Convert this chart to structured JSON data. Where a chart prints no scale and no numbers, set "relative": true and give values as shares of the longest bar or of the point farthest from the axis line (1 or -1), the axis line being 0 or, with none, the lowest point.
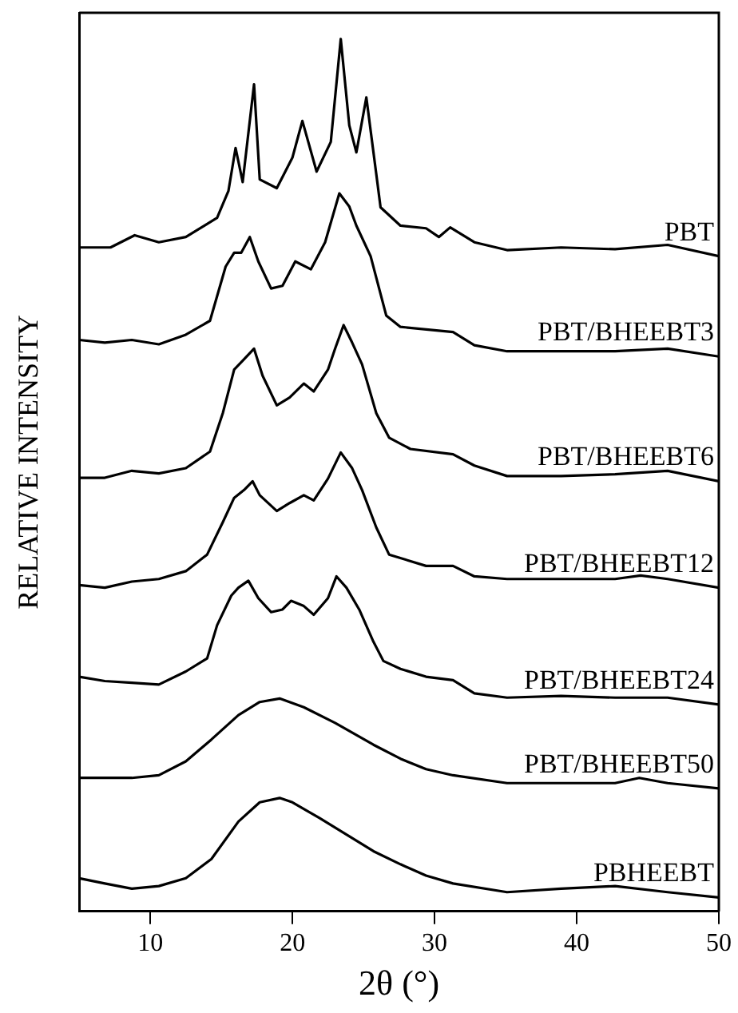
{
  "chart_data": {
    "type": "line",
    "relative": true,
    "xlabel": "2θ (°)",
    "ylabel": "RELATIVE INTENSITY",
    "xlim": [
      5,
      50
    ],
    "xticks": [
      10,
      20,
      30,
      40,
      50
    ],
    "tick_labels": "x",
    "grid": false,
    "legend": false,
    "marker": "none",
    "line_style": "solid",
    "series": [
      {
        "name": "PBT",
        "color": "#000000",
        "x": [
          5.0,
          7.2,
          8.9,
          10.6,
          12.5,
          14.7,
          15.5,
          16.0,
          16.5,
          17.3,
          17.7,
          18.9,
          20.0,
          20.7,
          21.7,
          22.7,
          23.4,
          24.0,
          24.5,
          25.2,
          25.9,
          26.2,
          27.6,
          29.4,
          30.3,
          31.1,
          32.8,
          35.1,
          38.9,
          42.7,
          46.4,
          50.0
        ],
        "values": [
          0.761,
          0.761,
          0.775,
          0.767,
          0.773,
          0.795,
          0.826,
          0.875,
          0.836,
          0.948,
          0.839,
          0.829,
          0.864,
          0.906,
          0.848,
          0.882,
          1.0,
          0.901,
          0.87,
          0.933,
          0.845,
          0.807,
          0.786,
          0.783,
          0.773,
          0.784,
          0.767,
          0.758,
          0.761,
          0.759,
          0.764,
          0.751
        ]
      },
      {
        "name": "PBT/BHEEBT3",
        "color": "#000000",
        "x": [
          5.0,
          6.8,
          8.7,
          10.6,
          12.5,
          14.2,
          15.3,
          15.9,
          16.4,
          17.0,
          17.6,
          18.5,
          19.3,
          20.2,
          21.3,
          22.3,
          23.3,
          24.0,
          24.5,
          25.5,
          26.6,
          27.6,
          31.3,
          32.8,
          35.1,
          38.9,
          42.7,
          46.4,
          50.0
        ],
        "values": [
          0.655,
          0.652,
          0.655,
          0.65,
          0.661,
          0.677,
          0.739,
          0.755,
          0.755,
          0.773,
          0.745,
          0.714,
          0.717,
          0.745,
          0.736,
          0.767,
          0.823,
          0.808,
          0.786,
          0.751,
          0.683,
          0.67,
          0.664,
          0.649,
          0.642,
          0.642,
          0.642,
          0.645,
          0.636
        ]
      },
      {
        "name": "PBT/BHEEBT6",
        "color": "#000000",
        "x": [
          5.0,
          6.8,
          8.7,
          10.6,
          12.5,
          14.2,
          15.1,
          15.9,
          16.6,
          17.3,
          17.9,
          18.9,
          19.8,
          20.8,
          21.5,
          22.5,
          23.0,
          23.6,
          24.2,
          24.9,
          25.9,
          26.8,
          28.3,
          31.3,
          32.8,
          35.1,
          38.9,
          42.7,
          46.4,
          50.0
        ],
        "values": [
          0.497,
          0.497,
          0.505,
          0.502,
          0.508,
          0.527,
          0.571,
          0.621,
          0.633,
          0.645,
          0.614,
          0.58,
          0.589,
          0.605,
          0.596,
          0.621,
          0.645,
          0.672,
          0.652,
          0.627,
          0.571,
          0.543,
          0.53,
          0.524,
          0.511,
          0.499,
          0.499,
          0.501,
          0.505,
          0.493
        ]
      },
      {
        "name": "PBT/BHEEBT12",
        "color": "#000000",
        "x": [
          5.0,
          6.8,
          8.7,
          10.6,
          12.5,
          14.0,
          15.1,
          15.9,
          16.6,
          17.2,
          17.7,
          18.9,
          19.8,
          20.8,
          21.5,
          22.5,
          23.4,
          24.2,
          24.9,
          25.9,
          26.8,
          29.4,
          31.3,
          32.8,
          35.1,
          38.9,
          42.7,
          44.5,
          46.4,
          50.0
        ],
        "values": [
          0.374,
          0.371,
          0.378,
          0.381,
          0.39,
          0.409,
          0.446,
          0.474,
          0.483,
          0.493,
          0.477,
          0.459,
          0.468,
          0.477,
          0.471,
          0.496,
          0.526,
          0.508,
          0.483,
          0.44,
          0.409,
          0.396,
          0.396,
          0.384,
          0.381,
          0.381,
          0.381,
          0.385,
          0.381,
          0.371
        ]
      },
      {
        "name": "PBT/BHEEBT24",
        "color": "#000000",
        "x": [
          5.0,
          6.8,
          8.7,
          10.6,
          12.5,
          14.0,
          14.7,
          15.7,
          16.2,
          16.9,
          17.6,
          18.5,
          19.3,
          19.9,
          20.8,
          21.5,
          22.5,
          23.1,
          23.8,
          24.7,
          25.7,
          26.4,
          27.6,
          29.4,
          31.3,
          32.8,
          35.1,
          38.9,
          42.7,
          46.4,
          50.0
        ],
        "values": [
          0.269,
          0.264,
          0.262,
          0.26,
          0.275,
          0.29,
          0.328,
          0.362,
          0.371,
          0.379,
          0.359,
          0.343,
          0.346,
          0.356,
          0.35,
          0.34,
          0.359,
          0.384,
          0.371,
          0.346,
          0.309,
          0.287,
          0.278,
          0.269,
          0.265,
          0.25,
          0.245,
          0.247,
          0.245,
          0.245,
          0.237
        ]
      },
      {
        "name": "PBT/BHEEBT50",
        "color": "#000000",
        "x": [
          5.0,
          8.7,
          10.6,
          12.5,
          14.3,
          16.2,
          17.7,
          19.1,
          20.8,
          23.0,
          25.7,
          27.6,
          29.4,
          31.3,
          35.1,
          38.9,
          42.7,
          44.4,
          46.4,
          50.0
        ],
        "values": [
          0.153,
          0.153,
          0.156,
          0.172,
          0.197,
          0.225,
          0.24,
          0.244,
          0.234,
          0.216,
          0.191,
          0.175,
          0.163,
          0.156,
          0.147,
          0.147,
          0.147,
          0.153,
          0.147,
          0.141
        ]
      },
      {
        "name": "PBHEEBT",
        "color": "#000000",
        "x": [
          5.0,
          6.8,
          8.7,
          10.6,
          12.5,
          14.3,
          16.2,
          17.7,
          19.1,
          20.0,
          21.9,
          23.8,
          25.7,
          27.6,
          29.4,
          31.3,
          35.1,
          38.9,
          42.7,
          46.4,
          50.0
        ],
        "values": [
          0.038,
          0.032,
          0.026,
          0.029,
          0.038,
          0.06,
          0.103,
          0.125,
          0.13,
          0.125,
          0.107,
          0.088,
          0.069,
          0.054,
          0.041,
          0.032,
          0.022,
          0.026,
          0.029,
          0.022,
          0.016
        ]
      }
    ]
  }
}
